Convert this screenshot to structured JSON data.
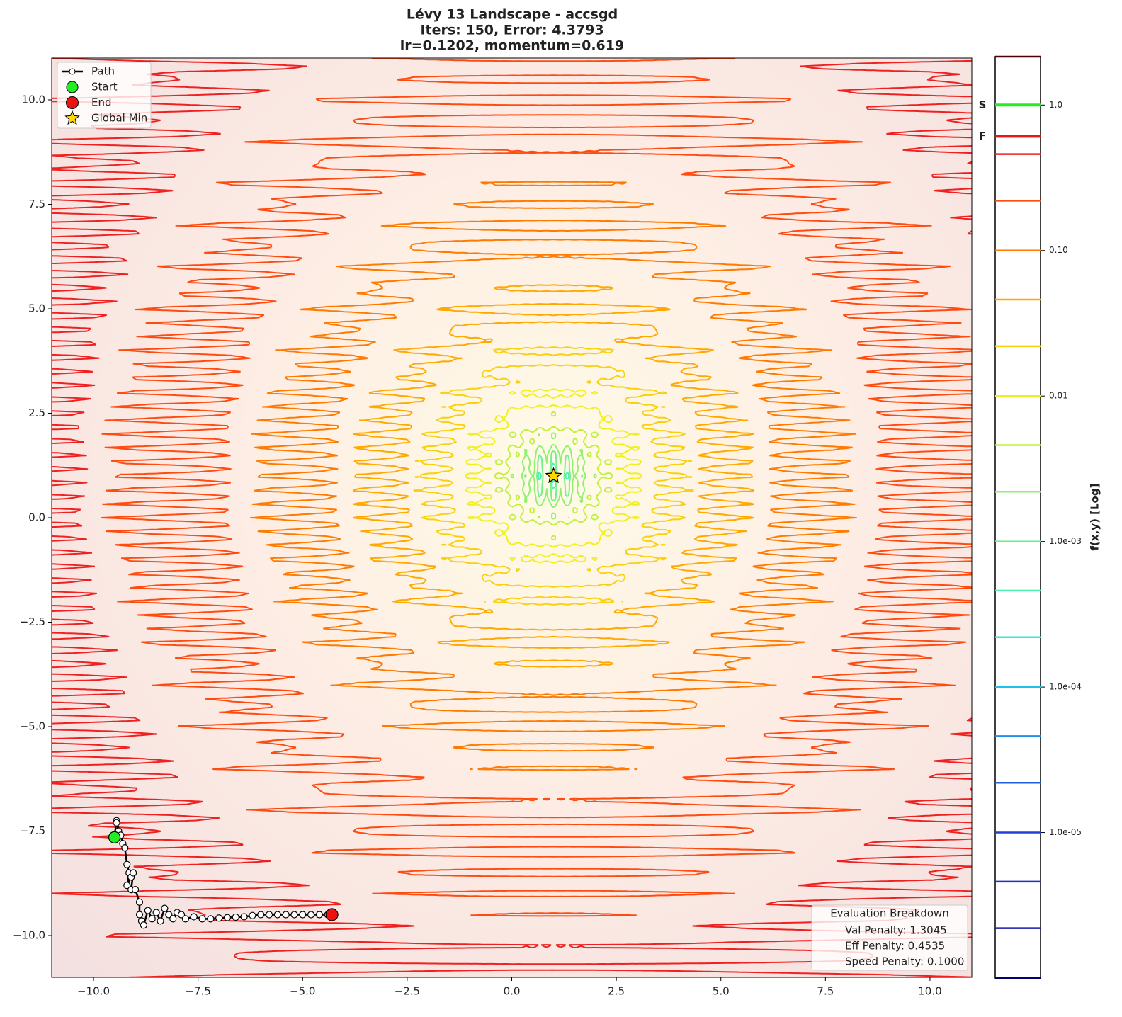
{
  "chart_data": {
    "type": "contour",
    "title": [
      "Lévy 13 Landscape - accsgd",
      "Iters: 150, Error: 4.3793",
      "lr=0.1202, momentum=0.619"
    ],
    "xlim": [
      -11,
      11
    ],
    "ylim": [
      -11,
      11
    ],
    "xticks": [
      {
        "value": -10,
        "label": "−10.0"
      },
      {
        "value": -7.5,
        "label": "−7.5"
      },
      {
        "value": -5,
        "label": "−5.0"
      },
      {
        "value": -2.5,
        "label": "−2.5"
      },
      {
        "value": 0,
        "label": "0.0"
      },
      {
        "value": 2.5,
        "label": "2.5"
      },
      {
        "value": 5,
        "label": "5.0"
      },
      {
        "value": 7.5,
        "label": "7.5"
      },
      {
        "value": 10,
        "label": "10.0"
      }
    ],
    "yticks": [
      {
        "value": -10,
        "label": "−10.0"
      },
      {
        "value": -7.5,
        "label": "−7.5"
      },
      {
        "value": -5,
        "label": "−5.0"
      },
      {
        "value": -2.5,
        "label": "−2.5"
      },
      {
        "value": 0,
        "label": "0.0"
      },
      {
        "value": 2.5,
        "label": "2.5"
      },
      {
        "value": 5,
        "label": "5.0"
      },
      {
        "value": 7.5,
        "label": "7.5"
      },
      {
        "value": 10,
        "label": "10.0"
      }
    ],
    "path": {
      "name": "Path",
      "color": "#000000",
      "x": [
        -9.5,
        -9.45,
        -9.4,
        -9.45,
        -9.35,
        -9.3,
        -9.25,
        -9.2,
        -9.15,
        -9.2,
        -9.1,
        -9.05,
        -9.1,
        -9.0,
        -8.9,
        -8.9,
        -8.85,
        -8.8,
        -8.7,
        -8.6,
        -8.5,
        -8.4,
        -8.3,
        -8.2,
        -8.1,
        -8.0,
        -7.9,
        -7.8,
        -7.6,
        -7.4,
        -7.2,
        -7.0,
        -6.8,
        -6.6,
        -6.4,
        -6.2,
        -6.0,
        -5.8,
        -5.6,
        -5.4,
        -5.2,
        -5.0,
        -4.8,
        -4.6,
        -4.4,
        -4.3
      ],
      "y": [
        -7.65,
        -7.25,
        -7.5,
        -7.3,
        -7.6,
        -7.8,
        -7.9,
        -8.3,
        -8.5,
        -8.8,
        -8.6,
        -8.5,
        -8.9,
        -8.9,
        -9.2,
        -9.5,
        -9.65,
        -9.75,
        -9.4,
        -9.6,
        -9.45,
        -9.65,
        -9.35,
        -9.5,
        -9.6,
        -9.45,
        -9.5,
        -9.6,
        -9.55,
        -9.6,
        -9.6,
        -9.58,
        -9.57,
        -9.56,
        -9.55,
        -9.52,
        -9.5,
        -9.5,
        -9.5,
        -9.5,
        -9.5,
        -9.5,
        -9.5,
        -9.5,
        -9.5,
        -9.5
      ]
    },
    "start": {
      "name": "Start",
      "color": "#22ee22",
      "x": -9.5,
      "y": -7.65
    },
    "end": {
      "name": "End",
      "color": "#ee1111",
      "x": -4.3,
      "y": -9.5
    },
    "global_min": {
      "name": "Global Min",
      "color": "#ffd700",
      "x": 1,
      "y": 1
    },
    "evaluation": {
      "title": "Evaluation Breakdown",
      "lines": [
        "Val Penalty: 1.3045",
        "Eff Penalty: 0.4535",
        "Speed Penalty: 0.1000"
      ]
    },
    "colorbar": {
      "label": "f(x,y) [Log]",
      "log": true,
      "lim": [
        1e-06,
        2.15
      ],
      "ticks": [
        {
          "value": 1,
          "label": "1.0"
        },
        {
          "value": 0.1,
          "label": "0.10"
        },
        0.01,
        {
          "value": 0.001,
          "label": "1.0e-03"
        },
        {
          "value": 0.0001,
          "label": "1.0e-04"
        },
        {
          "value": 1e-05,
          "label": "1.0e-05"
        }
      ],
      "levels": [
        1e-06,
        2.2e-06,
        4.6e-06,
        1e-05,
        2.2e-05,
        4.6e-05,
        0.0001,
        0.00022,
        0.00046,
        0.001,
        0.0022,
        0.0046,
        0.01,
        0.022,
        0.046,
        0.1,
        0.22,
        0.46,
        1,
        2.15
      ],
      "level_colors": [
        "#000070",
        "#1a1aa8",
        "#1f2fc8",
        "#2040d8",
        "#1f5fe0",
        "#2090f0",
        "#20c0e8",
        "#30e8d8",
        "#50f0b0",
        "#70f090",
        "#90f070",
        "#c0f040",
        "#f0f020",
        "#f8d010",
        "#ffa800",
        "#ff7a00",
        "#ff4a10",
        "#ee2020",
        "#c00000",
        "#500000"
      ],
      "markers": [
        {
          "label": "S",
          "value": 1,
          "color": "#22ee22"
        },
        {
          "label": "F",
          "value": 0.61,
          "color": "#ee1111"
        }
      ]
    }
  }
}
